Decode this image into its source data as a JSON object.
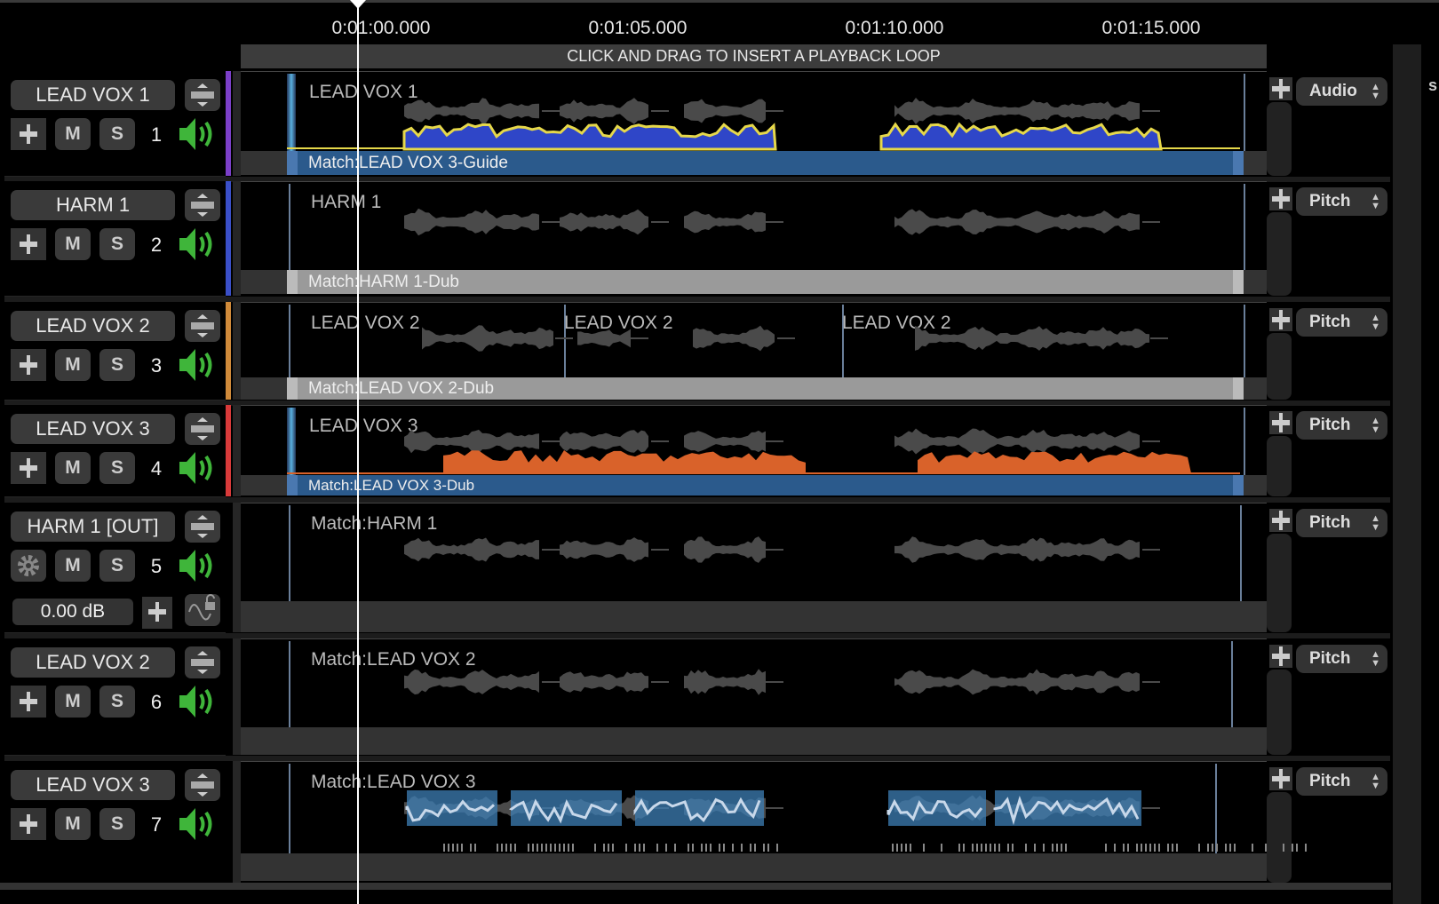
{
  "ruler": {
    "labels": [
      "0:01:00.000",
      "0:01:05.000",
      "0:01:10.000",
      "0:01:15.000"
    ]
  },
  "loop_bar": {
    "text": "CLICK AND DRAG TO INSERT A PLAYBACK LOOP"
  },
  "colors": {
    "accent_green": "#3fb53a",
    "pitch_blue": "#2f46c8",
    "pitch_yellow": "#e6d84a",
    "pitch_orange": "#d9622a",
    "match_blue": "#2b5a8c"
  },
  "buttons": {
    "mute": "M",
    "solo": "S"
  },
  "tracks": [
    {
      "name": "LEAD VOX 1",
      "number": "1",
      "strip_color": "#7b3fc8",
      "clips": [
        "LEAD VOX 1"
      ],
      "match": "Match:LEAD VOX 3-Guide",
      "dropdown": "Audio"
    },
    {
      "name": "HARM 1",
      "number": "2",
      "strip_color": "#3a4fc8",
      "clips": [
        "HARM 1"
      ],
      "match": "Match:HARM 1-Dub",
      "dropdown": "Pitch"
    },
    {
      "name": "LEAD VOX 2",
      "number": "3",
      "strip_color": "#d08a3a",
      "clips": [
        "LEAD VOX 2",
        "LEAD VOX 2",
        "LEAD VOX 2"
      ],
      "match": "Match:LEAD VOX 2-Dub",
      "dropdown": "Pitch"
    },
    {
      "name": "LEAD VOX 3",
      "number": "4",
      "strip_color": "#d83a3a",
      "clips": [
        "LEAD VOX 3"
      ],
      "match": "Match:LEAD VOX 3-Dub",
      "dropdown": "Pitch"
    },
    {
      "name": "HARM 1 [OUT]",
      "number": "5",
      "strip_color": "",
      "clips": [
        "Match:HARM 1"
      ],
      "match": "",
      "dropdown": "Pitch",
      "gain": "0.00 dB"
    },
    {
      "name": "LEAD VOX 2",
      "number": "6",
      "strip_color": "",
      "clips": [
        "Match:LEAD VOX 2"
      ],
      "match": "",
      "dropdown": "Pitch"
    },
    {
      "name": "LEAD VOX 3",
      "number": "7",
      "strip_color": "",
      "clips": [
        "Match:LEAD VOX 3"
      ],
      "match": "",
      "dropdown": "Pitch"
    }
  ],
  "edge_text": "s"
}
